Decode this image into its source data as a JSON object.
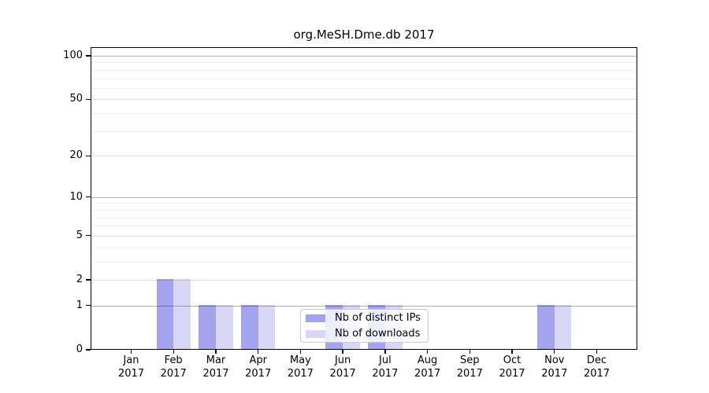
{
  "chart_data": {
    "type": "bar",
    "title": "org.MeSH.Dme.db 2017",
    "year_label": "2017",
    "categories": [
      "Jan",
      "Feb",
      "Mar",
      "Apr",
      "May",
      "Jun",
      "Jul",
      "Aug",
      "Sep",
      "Oct",
      "Nov",
      "Dec"
    ],
    "series": [
      {
        "name": "Nb of distinct IPs",
        "color": "#a4a4ee",
        "values": [
          0,
          2,
          1,
          1,
          0,
          1,
          1,
          0,
          0,
          0,
          1,
          0
        ]
      },
      {
        "name": "Nb of downloads",
        "color": "#d8d8f6",
        "values": [
          0,
          2,
          1,
          1,
          0,
          1,
          1,
          0,
          0,
          0,
          1,
          0
        ]
      }
    ],
    "y_axis": {
      "scale": "log10(1+x)",
      "tick_values": [
        0,
        1,
        2,
        5,
        10,
        20,
        50,
        100
      ],
      "minor_gridline_values": [
        3,
        4,
        6,
        7,
        8,
        9,
        30,
        40,
        60,
        70,
        80,
        90
      ]
    },
    "legend_position": "inside-bottom-center",
    "grid": "on",
    "colors": {
      "background": "#ffffff",
      "axis": "#000000",
      "text": "#000000",
      "grid_strong": "rgba(0,0,0,0.30)",
      "grid_mid": "rgba(0,0,0,0.13)",
      "grid_faint": "rgba(0,0,0,0.065)",
      "legend_border": "#c8c8c8",
      "legend_bg": "rgba(255,255,255,0.8)"
    }
  }
}
